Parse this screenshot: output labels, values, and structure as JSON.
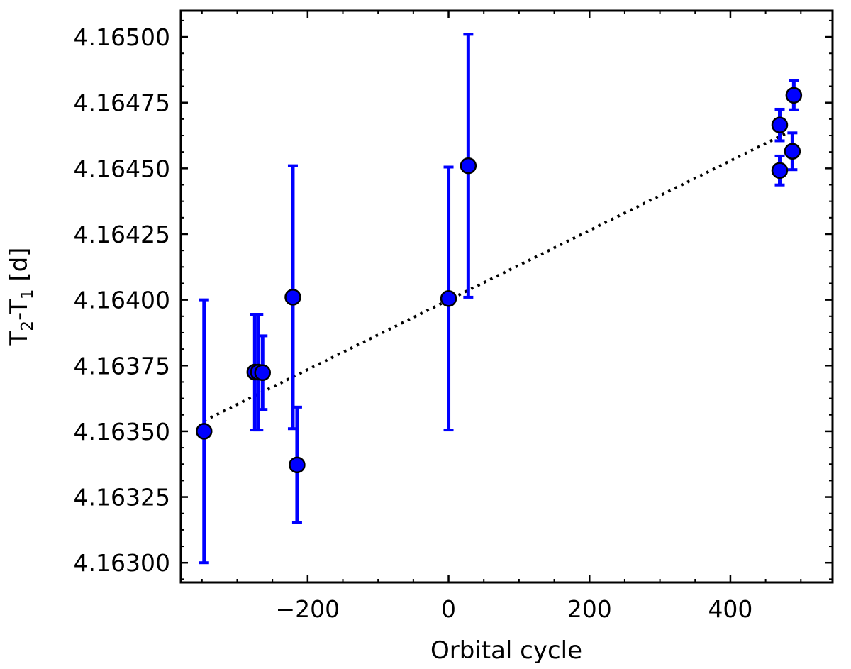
{
  "chart_data": {
    "type": "scatter",
    "xlabel": "Orbital cycle",
    "ylabel": {
      "base": "T",
      "sub1": "2",
      "mid": "-T",
      "sub2": "1",
      "unit": " [d]"
    },
    "xlim": [
      -380,
      545
    ],
    "ylim": [
      4.162925,
      4.1651
    ],
    "xticks": [
      -200,
      0,
      200,
      400
    ],
    "xtick_labels": [
      "−200",
      "0",
      "200",
      "400"
    ],
    "yticks": [
      4.163,
      4.16325,
      4.1635,
      4.16375,
      4.164,
      4.16425,
      4.1645,
      4.16475,
      4.165
    ],
    "ytick_labels": [
      "4.16300",
      "4.16325",
      "4.16350",
      "4.16375",
      "4.16400",
      "4.16425",
      "4.16450",
      "4.16475",
      "4.16500"
    ],
    "x_minor_step": 50,
    "y_minor_step": 6.25e-05,
    "grid": false,
    "marker_color": "#0000ff",
    "errorbar_color": "#0000ff",
    "points": [
      {
        "x": -347,
        "y": 4.1635,
        "yerr": 0.0005
      },
      {
        "x": -275,
        "y": 4.163725,
        "yerr": 0.00022
      },
      {
        "x": -270,
        "y": 4.163725,
        "yerr": 0.00022
      },
      {
        "x": -264,
        "y": 4.163723,
        "yerr": 0.00014
      },
      {
        "x": -221,
        "y": 4.16401,
        "yerr": 0.0005
      },
      {
        "x": -215,
        "y": 4.163372,
        "yerr": 0.00022
      },
      {
        "x": 0,
        "y": 4.164005,
        "yerr": 0.0005
      },
      {
        "x": 28,
        "y": 4.16451,
        "yerr": 0.0005
      },
      {
        "x": 470,
        "y": 4.164665,
        "yerr": 6e-05
      },
      {
        "x": 470,
        "y": 4.164492,
        "yerr": 5.5e-05
      },
      {
        "x": 488,
        "y": 4.164565,
        "yerr": 7e-05
      },
      {
        "x": 490,
        "y": 4.164778,
        "yerr": 5.5e-05
      }
    ],
    "fit_line": {
      "x": [
        -347,
        478
      ],
      "y": [
        4.16354,
        4.164632
      ],
      "style": "dotted"
    }
  }
}
